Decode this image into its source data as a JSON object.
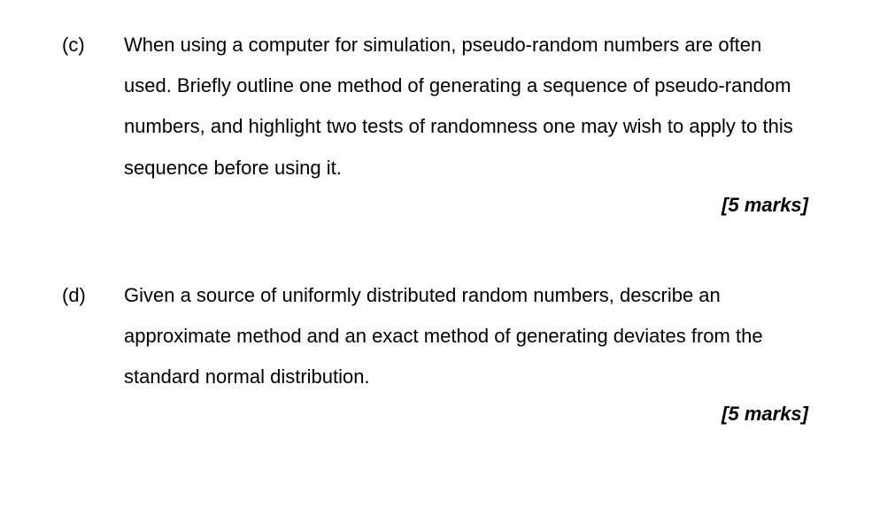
{
  "page": {
    "background_color": "#ffffff",
    "text_color": "#000000",
    "font_family": "Arial",
    "body_fontsize_pt": 16,
    "line_height": 2.1
  },
  "questions": [
    {
      "label": "(c)",
      "text": "When using a computer for simulation, pseudo-random numbers are often used. Briefly outline one method of generating a sequence of pseudo-random numbers, and highlight two tests of randomness one may wish to apply to this sequence before using it.",
      "marks": "[5 marks]"
    },
    {
      "label": "(d)",
      "text": "Given a source of uniformly distributed random numbers, describe an approximate method and an exact method of generating deviates from the standard normal distribution.",
      "marks": "[5 marks]"
    }
  ]
}
